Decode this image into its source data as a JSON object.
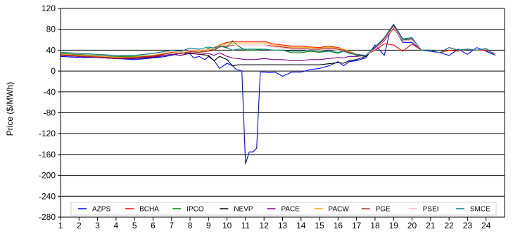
{
  "chart_data": {
    "type": "line",
    "ylabel": "Price ($/MWh)",
    "xlabel": "",
    "ylim": [
      -280,
      120
    ],
    "yticks": [
      120,
      80,
      40,
      0,
      -40,
      -80,
      -120,
      -160,
      -200,
      -240,
      -280
    ],
    "x_tick_labels": [
      "1",
      "2",
      "3",
      "4",
      "5",
      "6",
      "7",
      "8",
      "9",
      "10",
      "11",
      "12",
      "13",
      "14",
      "15",
      "16",
      "17",
      "18",
      "19",
      "20",
      "21",
      "22",
      "23",
      "24"
    ],
    "x_range": [
      1,
      25
    ],
    "grid": "horizontal",
    "legend_position": "bottom-inside",
    "series": [
      {
        "name": "AZPS",
        "color": "#0000ff",
        "x": [
          1,
          2,
          3,
          4,
          5,
          6,
          6.5,
          7,
          7.5,
          8,
          8.2,
          8.5,
          8.8,
          9,
          9.3,
          9.6,
          10,
          10.3,
          10.5,
          10.8,
          11,
          11.2,
          11.4,
          11.6,
          11.8,
          12,
          12.3,
          12.6,
          13,
          13.5,
          14,
          14.5,
          15,
          15.5,
          16,
          16.3,
          16.6,
          17,
          17.5,
          18,
          18.5,
          18.8,
          19,
          19.5,
          20,
          20.5,
          21,
          21.5,
          22,
          22.5,
          23,
          23.5,
          24,
          24.5
        ],
        "y": [
          28,
          26,
          26,
          24,
          22,
          25,
          27,
          30,
          35,
          33,
          25,
          28,
          22,
          28,
          20,
          5,
          15,
          10,
          3,
          0,
          -178,
          -155,
          -155,
          -148,
          -2,
          -2,
          -3,
          -2,
          -10,
          -2,
          -2,
          3,
          5,
          10,
          18,
          10,
          18,
          20,
          25,
          50,
          30,
          75,
          85,
          55,
          55,
          40,
          38,
          35,
          30,
          42,
          32,
          45,
          38,
          30
        ]
      },
      {
        "name": "BCHA",
        "color": "#ff0000",
        "x": [
          1,
          2,
          3,
          4,
          5,
          6,
          7,
          7.5,
          8,
          8.5,
          9,
          9.3,
          9.6,
          10,
          10.5,
          11,
          11.5,
          12,
          12.5,
          13,
          13.5,
          14,
          14.5,
          15,
          15.5,
          16,
          16.3,
          16.6,
          17,
          17.5,
          18,
          18.5,
          19,
          19.5,
          20,
          20.5,
          21,
          21.5,
          22,
          22.5,
          23,
          23.5,
          24,
          24.5
        ],
        "y": [
          32,
          30,
          28,
          26,
          26,
          28,
          35,
          33,
          38,
          40,
          40,
          45,
          50,
          55,
          57,
          57,
          57,
          57,
          52,
          50,
          48,
          48,
          46,
          45,
          48,
          45,
          42,
          38,
          32,
          30,
          40,
          52,
          50,
          38,
          52,
          40,
          40,
          35,
          40,
          38,
          42,
          40,
          40,
          33
        ]
      },
      {
        "name": "IPCO",
        "color": "#008000",
        "x": [
          1,
          2,
          3,
          4,
          5,
          6,
          7,
          7.5,
          8,
          8.5,
          9,
          9.3,
          9.6,
          10,
          10.3,
          10.6,
          11,
          11.5,
          12,
          12.5,
          13,
          13.5,
          14,
          14.5,
          15,
          15.5,
          16,
          16.3,
          16.6,
          17,
          17.5,
          18,
          18.5,
          19,
          19.5,
          20,
          20.5,
          21,
          21.5,
          22,
          22.5,
          23,
          23.5,
          24,
          24.5
        ],
        "y": [
          34,
          32,
          30,
          28,
          28,
          30,
          36,
          34,
          38,
          35,
          44,
          40,
          50,
          45,
          58,
          48,
          40,
          40,
          42,
          40,
          40,
          35,
          35,
          38,
          36,
          38,
          34,
          38,
          35,
          30,
          28,
          45,
          60,
          88,
          60,
          62,
          40,
          40,
          35,
          45,
          40,
          42,
          40,
          43,
          30
        ]
      },
      {
        "name": "NEVP",
        "color": "#000000",
        "x": [
          1,
          2,
          3,
          4,
          5,
          6,
          7,
          7.5,
          8,
          8.5,
          9,
          9.3,
          9.6,
          10,
          10.3,
          10.6,
          11,
          11.5,
          12,
          12.5,
          13,
          13.5,
          14,
          14.5,
          15,
          15.5,
          16,
          16.3,
          16.6,
          17,
          17.5,
          18,
          18.5,
          19,
          19.5,
          20,
          20.5,
          21,
          21.5,
          22,
          22.5,
          23,
          23.5,
          24,
          24.5
        ],
        "y": [
          30,
          28,
          26,
          24,
          24,
          26,
          32,
          30,
          34,
          32,
          30,
          20,
          28,
          22,
          10,
          12,
          12,
          12,
          12,
          12,
          12,
          12,
          12,
          12,
          12,
          14,
          16,
          15,
          20,
          22,
          28,
          45,
          62,
          88,
          58,
          60,
          40,
          40,
          35,
          45,
          40,
          42,
          40,
          43,
          30
        ]
      },
      {
        "name": "PACE",
        "color": "#800080",
        "x": [
          1,
          2,
          3,
          4,
          5,
          6,
          7,
          7.5,
          8,
          8.5,
          9,
          9.3,
          9.6,
          10,
          10.3,
          10.6,
          11,
          11.5,
          12,
          12.5,
          13,
          13.5,
          14,
          14.5,
          15,
          15.5,
          16,
          16.3,
          16.6,
          17,
          17.5,
          18,
          18.5,
          19,
          19.5,
          20,
          20.5,
          21,
          21.5,
          22,
          22.5,
          23,
          23.5,
          24,
          24.5
        ],
        "y": [
          30,
          28,
          26,
          24,
          24,
          27,
          32,
          30,
          35,
          32,
          34,
          30,
          35,
          28,
          25,
          24,
          22,
          22,
          24,
          22,
          22,
          20,
          20,
          22,
          22,
          24,
          26,
          25,
          28,
          28,
          30,
          45,
          62,
          88,
          58,
          62,
          40,
          40,
          35,
          45,
          40,
          42,
          40,
          43,
          30
        ]
      },
      {
        "name": "PACW",
        "color": "#ffa500",
        "x": [
          1,
          2,
          3,
          4,
          5,
          6,
          7,
          7.5,
          8,
          8.5,
          9,
          9.3,
          9.6,
          10,
          10.5,
          11,
          11.5,
          12,
          12.5,
          13,
          13.5,
          14,
          14.5,
          15,
          15.5,
          16,
          16.3,
          16.6,
          17,
          17.5,
          18,
          18.5,
          19,
          19.5,
          20,
          20.5,
          21,
          21.5,
          22,
          22.5,
          23,
          23.5,
          24,
          24.5
        ],
        "y": [
          32,
          30,
          28,
          26,
          27,
          30,
          36,
          34,
          38,
          38,
          40,
          44,
          50,
          52,
          54,
          54,
          54,
          54,
          50,
          48,
          46,
          46,
          45,
          44,
          46,
          44,
          42,
          38,
          32,
          30,
          42,
          60,
          85,
          58,
          60,
          40,
          40,
          35,
          45,
          40,
          42,
          40,
          43,
          30
        ]
      },
      {
        "name": "PGE",
        "color": "#a52a2a",
        "x": [
          1,
          2,
          3,
          4,
          5,
          6,
          7,
          7.5,
          8,
          8.5,
          9,
          9.3,
          9.6,
          10,
          10.5,
          11,
          11.5,
          12,
          12.5,
          13,
          13.5,
          14,
          14.5,
          15,
          15.5,
          16,
          16.3,
          16.6,
          17,
          17.5,
          18,
          18.5,
          19,
          19.5,
          20,
          20.5,
          21,
          21.5,
          22,
          22.5,
          23,
          23.5,
          24,
          24.5
        ],
        "y": [
          31,
          29,
          27,
          25,
          26,
          29,
          35,
          33,
          37,
          36,
          38,
          40,
          46,
          48,
          50,
          50,
          50,
          50,
          48,
          46,
          44,
          44,
          42,
          42,
          44,
          42,
          40,
          36,
          31,
          30,
          42,
          58,
          82,
          58,
          60,
          40,
          40,
          35,
          45,
          40,
          42,
          40,
          43,
          30
        ]
      },
      {
        "name": "PSEI",
        "color": "#ffb6c1",
        "x": [
          1,
          2,
          3,
          4,
          5,
          6,
          7,
          7.5,
          8,
          8.5,
          9,
          9.3,
          9.6,
          10,
          10.5,
          11,
          11.5,
          12,
          12.5,
          13,
          13.5,
          14,
          14.5,
          15,
          15.5,
          16,
          16.3,
          16.6,
          17,
          17.5,
          18,
          18.5,
          19,
          19.5,
          20,
          20.5,
          21,
          21.5,
          22,
          22.5,
          23,
          23.5,
          24,
          24.5
        ],
        "y": [
          35,
          33,
          31,
          29,
          30,
          33,
          38,
          36,
          40,
          40,
          42,
          44,
          48,
          50,
          50,
          50,
          50,
          50,
          46,
          44,
          42,
          42,
          40,
          40,
          42,
          40,
          38,
          34,
          32,
          30,
          42,
          60,
          84,
          58,
          60,
          40,
          40,
          35,
          45,
          40,
          42,
          40,
          43,
          30
        ]
      },
      {
        "name": "SMCE",
        "color": "#008080",
        "x": [
          1,
          2,
          3,
          4,
          5,
          6,
          7,
          7.5,
          8,
          8.5,
          9,
          9.3,
          9.6,
          10,
          10.3,
          10.6,
          11,
          11.5,
          12,
          12.5,
          13,
          13.5,
          14,
          14.5,
          15,
          15.5,
          16,
          16.3,
          16.6,
          17,
          17.5,
          18,
          18.5,
          19,
          19.5,
          20,
          20.5,
          21,
          21.5,
          22,
          22.5,
          23,
          23.5,
          24,
          24.5
        ],
        "y": [
          36,
          34,
          32,
          30,
          30,
          34,
          40,
          38,
          44,
          42,
          46,
          44,
          48,
          44,
          40,
          42,
          42,
          42,
          42,
          40,
          40,
          38,
          38,
          40,
          38,
          38,
          36,
          38,
          34,
          32,
          30,
          46,
          64,
          90,
          62,
          64,
          40,
          40,
          35,
          45,
          40,
          42,
          40,
          43,
          30
        ]
      }
    ]
  }
}
